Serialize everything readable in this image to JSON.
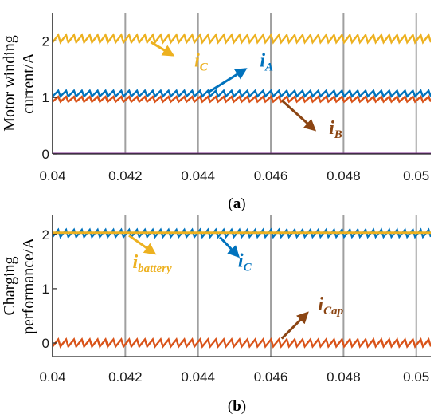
{
  "chart_data": [
    {
      "type": "line",
      "panel_label": {
        "open": "(",
        "letter": "a",
        "close": ")"
      },
      "ylabel_lines": [
        "Motor winding",
        "current/A"
      ],
      "xlim": [
        0.04,
        0.0504
      ],
      "ylim": [
        0,
        2.5
      ],
      "x_ticks": [
        "0.04",
        "0.042",
        "0.044",
        "0.046",
        "0.048",
        "0.05"
      ],
      "x_tick_values": [
        0.04,
        0.042,
        0.044,
        0.046,
        0.048,
        0.05
      ],
      "y_ticks": [
        "0",
        "1",
        "2"
      ],
      "y_tick_values": [
        0,
        1,
        2
      ],
      "grid": "vertical only",
      "series": [
        {
          "key": "iC",
          "main": "i",
          "sub": "C",
          "mean": 2.04,
          "ripple": 0.13,
          "cycles": 48,
          "color": "#EDB120"
        },
        {
          "key": "iA",
          "main": "i",
          "sub": "A",
          "mean": 1.07,
          "ripple": 0.1,
          "cycles": 48,
          "color": "#0072BD"
        },
        {
          "key": "iB",
          "main": "i",
          "sub": "B",
          "mean": 0.97,
          "ripple": 0.09,
          "cycles": 48,
          "color": "#D95319"
        },
        {
          "key": "zero",
          "mean": 0.0,
          "ripple": 0.0,
          "cycles": 0,
          "color": "#7E2F8E"
        }
      ],
      "annotations": [
        {
          "main": "i",
          "sub": "C",
          "color": "#EDB120",
          "points_to": "iC",
          "text_at": [
            0.0439,
            1.55
          ],
          "arrow_from": [
            0.0433,
            1.75
          ],
          "arrow_to": [
            0.0427,
            1.98
          ]
        },
        {
          "main": "i",
          "sub": "A",
          "color": "#0072BD",
          "points_to": "iA",
          "text_at": [
            0.0457,
            1.55
          ],
          "arrow_from": [
            0.0453,
            1.5
          ],
          "arrow_to": [
            0.0443,
            1.1
          ]
        },
        {
          "main": "i",
          "sub": "B",
          "color": "#8B4513",
          "points_to": "iB",
          "text_at": [
            0.0476,
            0.35
          ],
          "arrow_from": [
            0.0472,
            0.43
          ],
          "arrow_to": [
            0.0463,
            0.95
          ]
        }
      ]
    },
    {
      "type": "line",
      "panel_label": {
        "open": "(",
        "letter": "b",
        "close": ")"
      },
      "ylabel_lines": [
        "Charging",
        "performance/A"
      ],
      "xlim": [
        0.04,
        0.0504
      ],
      "ylim": [
        -0.25,
        2.35
      ],
      "x_ticks": [
        "0.04",
        "0.042",
        "0.044",
        "0.046",
        "0.048",
        "0.05"
      ],
      "x_tick_values": [
        0.04,
        0.042,
        0.044,
        0.046,
        0.048,
        0.05
      ],
      "y_ticks": [
        "0",
        "1",
        "2"
      ],
      "y_tick_values": [
        0,
        1,
        2
      ],
      "grid": "vertical only",
      "series": [
        {
          "key": "iC",
          "main": "i",
          "sub": "C",
          "mean": 2.02,
          "ripple": 0.13,
          "cycles": 48,
          "color": "#0072BD"
        },
        {
          "key": "ibattery",
          "main": "i",
          "sub": "battery",
          "mean": 2.03,
          "ripple": 0.0,
          "cycles": 0,
          "color": "#EDB120"
        },
        {
          "key": "iCap",
          "main": "i",
          "sub": "Cap",
          "mean": 0.0,
          "ripple": 0.13,
          "cycles": 48,
          "color": "#D95319"
        }
      ],
      "annotations": [
        {
          "main": "i",
          "sub": "battery",
          "color": "#EDB120",
          "points_to": "ibattery",
          "text_at": [
            0.0422,
            1.38
          ],
          "arrow_from": [
            0.0428,
            1.65
          ],
          "arrow_to": [
            0.0421,
            1.98
          ]
        },
        {
          "main": "i",
          "sub": "C",
          "color": "#0072BD",
          "points_to": "iC",
          "text_at": [
            0.0451,
            1.4
          ],
          "arrow_from": [
            0.0451,
            1.6
          ],
          "arrow_to": [
            0.0446,
            1.95
          ]
        },
        {
          "main": "i",
          "sub": "Cap",
          "color": "#8B4513",
          "points_to": "iCap",
          "text_at": [
            0.0473,
            0.6
          ],
          "arrow_from": [
            0.047,
            0.55
          ],
          "arrow_to": [
            0.0463,
            0.08
          ]
        }
      ]
    }
  ]
}
